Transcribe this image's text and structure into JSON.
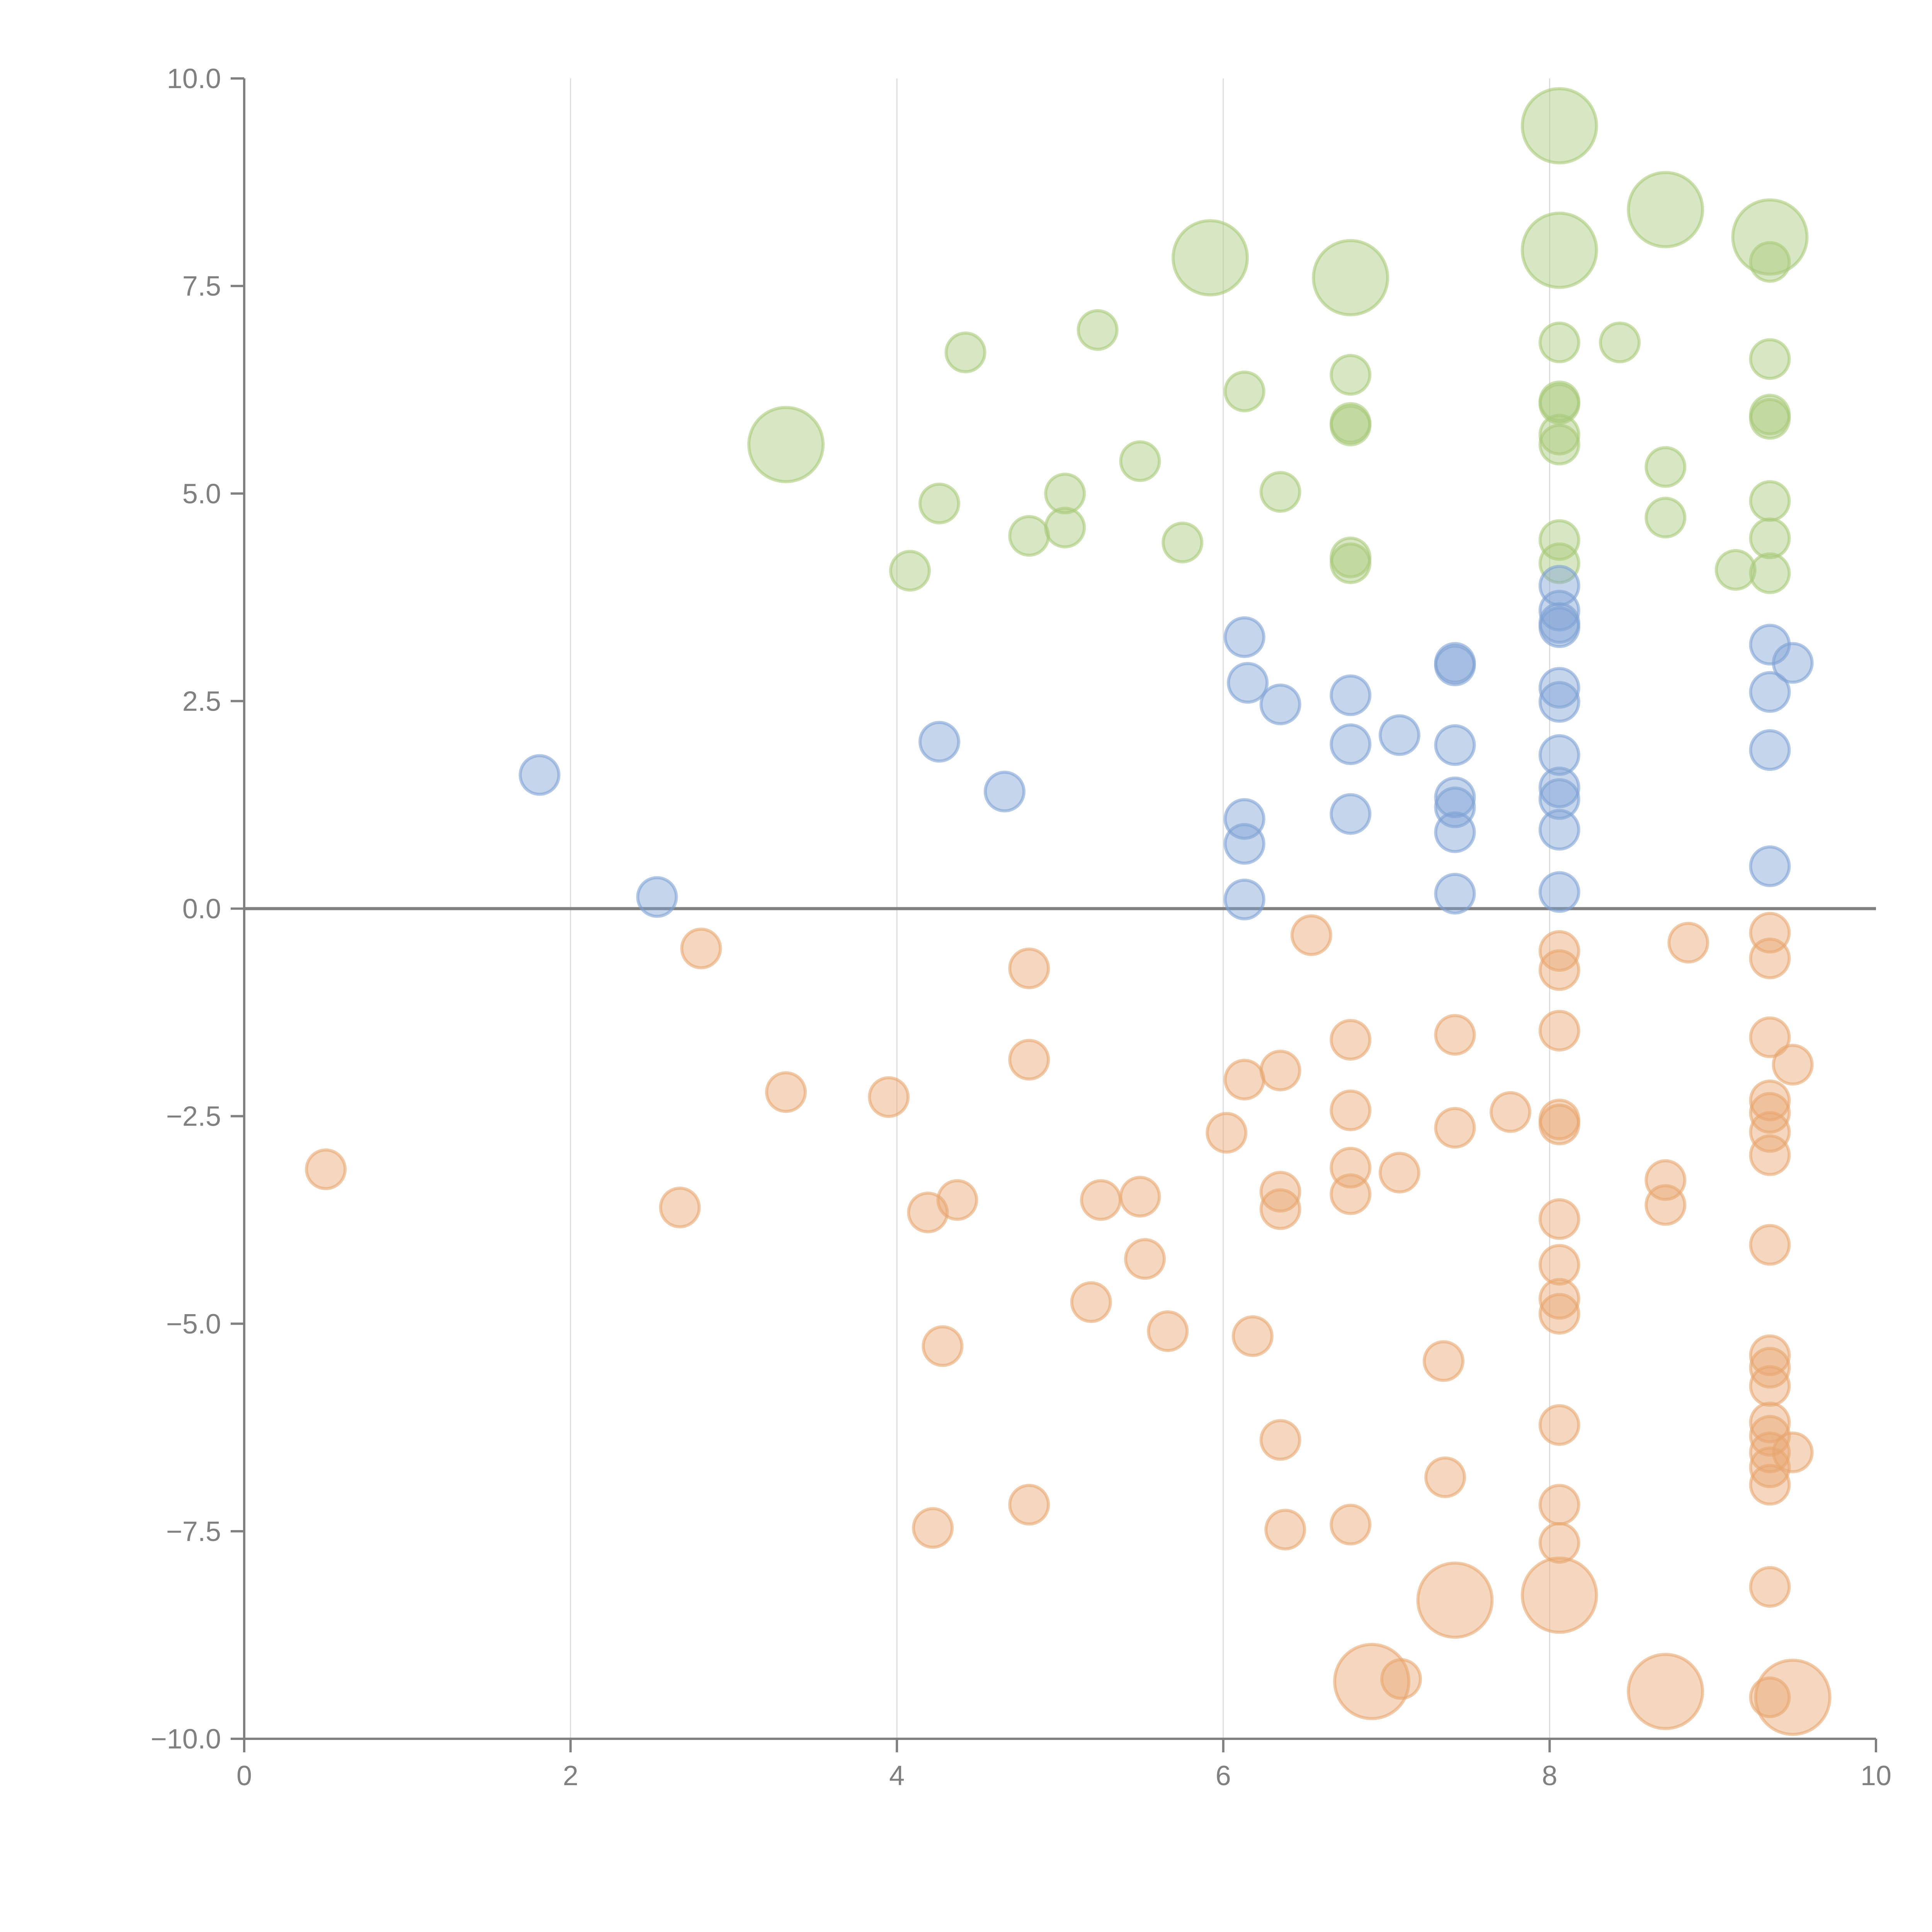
{
  "chart_data": {
    "type": "scatter",
    "title": "",
    "xlabel": "",
    "ylabel": "",
    "xlim": [
      0,
      10
    ],
    "ylim": [
      -10,
      10
    ],
    "grid": "vertical",
    "legend": "none",
    "x_ticks": [
      "0",
      "2",
      "4",
      "6",
      "8",
      "10"
    ],
    "x_tick_values": [
      0,
      2,
      4,
      6,
      8,
      10
    ],
    "y_ticks": [
      "10.0",
      "7.5",
      "5.0",
      "2.5",
      "0.0",
      "−2.5",
      "−5.0",
      "−7.5",
      "−10.0"
    ],
    "y_tick_values": [
      10,
      7.5,
      5,
      2.5,
      0,
      -2.5,
      -5,
      -7.5,
      -10
    ],
    "x_grid_values": [
      2,
      4,
      6,
      8
    ],
    "zero_line": 0,
    "series": [
      {
        "name": "green",
        "color": "#a9c97a",
        "points": [
          [
            3.32,
            5.59,
            2
          ],
          [
            4.42,
            6.7,
            1
          ],
          [
            4.08,
            4.07,
            1
          ],
          [
            4.26,
            4.88,
            1
          ],
          [
            4.81,
            4.49,
            1
          ],
          [
            5.03,
            5.0,
            1
          ],
          [
            5.03,
            4.59,
            1
          ],
          [
            5.23,
            6.97,
            1
          ],
          [
            5.49,
            5.39,
            1
          ],
          [
            5.75,
            4.41,
            1
          ],
          [
            5.92,
            7.84,
            2
          ],
          [
            6.13,
            6.23,
            1
          ],
          [
            6.35,
            5.02,
            1
          ],
          [
            6.78,
            7.6,
            2
          ],
          [
            6.78,
            6.43,
            1
          ],
          [
            6.78,
            5.85,
            1
          ],
          [
            6.78,
            5.82,
            1
          ],
          [
            6.78,
            4.23,
            1
          ],
          [
            6.78,
            4.16,
            1
          ],
          [
            8.06,
            9.43,
            2
          ],
          [
            8.06,
            7.93,
            2
          ],
          [
            8.06,
            6.82,
            1
          ],
          [
            8.06,
            6.11,
            1
          ],
          [
            8.06,
            6.08,
            1
          ],
          [
            8.06,
            5.71,
            1
          ],
          [
            8.06,
            5.59,
            1
          ],
          [
            8.06,
            4.44,
            1
          ],
          [
            8.06,
            4.16,
            1
          ],
          [
            8.43,
            6.82,
            1
          ],
          [
            8.71,
            8.42,
            2
          ],
          [
            8.71,
            5.32,
            1
          ],
          [
            8.71,
            4.71,
            1
          ],
          [
            9.14,
            4.08,
            1
          ],
          [
            9.35,
            8.09,
            2
          ],
          [
            9.35,
            7.79,
            1
          ],
          [
            9.35,
            6.62,
            1
          ],
          [
            9.35,
            5.95,
            1
          ],
          [
            9.35,
            5.9,
            1
          ],
          [
            9.35,
            4.91,
            1
          ],
          [
            9.35,
            4.46,
            1
          ],
          [
            9.35,
            4.04,
            1
          ]
        ]
      },
      {
        "name": "blue",
        "color": "#7fa2d4",
        "points": [
          [
            1.81,
            1.61,
            1
          ],
          [
            2.53,
            0.14,
            1
          ],
          [
            4.26,
            2.01,
            1
          ],
          [
            4.66,
            1.41,
            1
          ],
          [
            6.13,
            3.27,
            1
          ],
          [
            6.15,
            2.72,
            1
          ],
          [
            6.35,
            2.46,
            1
          ],
          [
            6.13,
            1.08,
            1
          ],
          [
            6.13,
            0.78,
            1
          ],
          [
            6.13,
            0.11,
            1
          ],
          [
            6.78,
            2.57,
            1
          ],
          [
            6.78,
            1.98,
            1
          ],
          [
            6.78,
            1.14,
            1
          ],
          [
            7.08,
            2.09,
            1
          ],
          [
            7.42,
            2.96,
            1
          ],
          [
            7.42,
            2.93,
            1
          ],
          [
            7.42,
            1.97,
            1
          ],
          [
            7.42,
            1.34,
            1
          ],
          [
            7.42,
            1.22,
            1
          ],
          [
            7.42,
            0.92,
            1
          ],
          [
            7.42,
            0.18,
            1
          ],
          [
            8.06,
            3.89,
            1
          ],
          [
            8.06,
            3.59,
            1
          ],
          [
            8.06,
            3.44,
            1
          ],
          [
            8.06,
            3.39,
            1
          ],
          [
            8.06,
            2.66,
            1
          ],
          [
            8.06,
            2.49,
            1
          ],
          [
            8.06,
            1.85,
            1
          ],
          [
            8.06,
            1.46,
            1
          ],
          [
            8.06,
            1.32,
            1
          ],
          [
            8.06,
            0.95,
            1
          ],
          [
            8.06,
            0.2,
            1
          ],
          [
            9.35,
            3.18,
            1
          ],
          [
            9.49,
            2.96,
            1
          ],
          [
            9.35,
            2.61,
            1
          ],
          [
            9.35,
            1.91,
            1
          ],
          [
            9.35,
            0.51,
            1
          ]
        ]
      },
      {
        "name": "orange",
        "color": "#e8a670",
        "points": [
          [
            0.5,
            -3.14,
            1
          ],
          [
            2.67,
            -3.6,
            1
          ],
          [
            2.8,
            -0.48,
            1
          ],
          [
            3.32,
            -2.21,
            1
          ],
          [
            3.95,
            -2.27,
            1
          ],
          [
            4.19,
            -3.66,
            1
          ],
          [
            4.37,
            -3.51,
            1
          ],
          [
            4.28,
            -5.27,
            1
          ],
          [
            4.22,
            -7.46,
            1
          ],
          [
            4.81,
            -0.72,
            1
          ],
          [
            4.81,
            -1.82,
            1
          ],
          [
            4.81,
            -7.18,
            1
          ],
          [
            5.19,
            -4.74,
            1
          ],
          [
            5.25,
            -3.51,
            1
          ],
          [
            5.49,
            -3.47,
            1
          ],
          [
            5.52,
            -4.22,
            1
          ],
          [
            5.66,
            -5.09,
            1
          ],
          [
            6.02,
            -2.7,
            1
          ],
          [
            6.13,
            -2.06,
            1
          ],
          [
            6.18,
            -5.15,
            1
          ],
          [
            6.35,
            -1.95,
            1
          ],
          [
            6.35,
            -3.41,
            1
          ],
          [
            6.35,
            -3.62,
            1
          ],
          [
            6.35,
            -6.4,
            1
          ],
          [
            6.38,
            -7.48,
            1
          ],
          [
            6.54,
            -0.32,
            1
          ],
          [
            6.78,
            -1.58,
            1
          ],
          [
            6.78,
            -2.43,
            1
          ],
          [
            6.78,
            -3.12,
            1
          ],
          [
            6.78,
            -3.44,
            1
          ],
          [
            6.78,
            -7.42,
            1
          ],
          [
            6.91,
            -9.31,
            2
          ],
          [
            7.08,
            -3.18,
            1
          ],
          [
            7.09,
            -9.28,
            1
          ],
          [
            7.35,
            -5.45,
            1
          ],
          [
            7.36,
            -6.85,
            1
          ],
          [
            7.42,
            -1.52,
            1
          ],
          [
            7.42,
            -2.64,
            1
          ],
          [
            7.42,
            -8.33,
            2
          ],
          [
            7.76,
            -2.45,
            1
          ],
          [
            8.06,
            -0.51,
            1
          ],
          [
            8.06,
            -0.74,
            1
          ],
          [
            8.06,
            -1.47,
            1
          ],
          [
            8.06,
            -2.54,
            1
          ],
          [
            8.06,
            -2.6,
            1
          ],
          [
            8.06,
            -3.74,
            1
          ],
          [
            8.06,
            -4.29,
            1
          ],
          [
            8.06,
            -4.7,
            1
          ],
          [
            8.06,
            -4.88,
            1
          ],
          [
            8.06,
            -6.22,
            1
          ],
          [
            8.06,
            -7.18,
            1
          ],
          [
            8.06,
            -7.64,
            1
          ],
          [
            8.06,
            -8.27,
            2
          ],
          [
            8.71,
            -3.27,
            1
          ],
          [
            8.71,
            -3.57,
            1
          ],
          [
            8.71,
            -9.43,
            2
          ],
          [
            8.85,
            -0.41,
            1
          ],
          [
            9.35,
            -0.29,
            1
          ],
          [
            9.35,
            -0.6,
            1
          ],
          [
            9.35,
            -1.55,
            1
          ],
          [
            9.49,
            -1.88,
            1
          ],
          [
            9.35,
            -2.31,
            1
          ],
          [
            9.35,
            -2.46,
            1
          ],
          [
            9.35,
            -2.69,
            1
          ],
          [
            9.35,
            -2.97,
            1
          ],
          [
            9.35,
            -4.05,
            1
          ],
          [
            9.35,
            -5.38,
            1
          ],
          [
            9.35,
            -5.53,
            1
          ],
          [
            9.35,
            -5.75,
            1
          ],
          [
            9.35,
            -6.19,
            1
          ],
          [
            9.35,
            -6.35,
            1
          ],
          [
            9.35,
            -6.55,
            1
          ],
          [
            9.35,
            -6.73,
            1
          ],
          [
            9.35,
            -6.94,
            1
          ],
          [
            9.49,
            -6.55,
            1
          ],
          [
            9.35,
            -8.17,
            1
          ],
          [
            9.35,
            -9.5,
            1
          ],
          [
            9.49,
            -9.5,
            2
          ]
        ]
      }
    ]
  }
}
